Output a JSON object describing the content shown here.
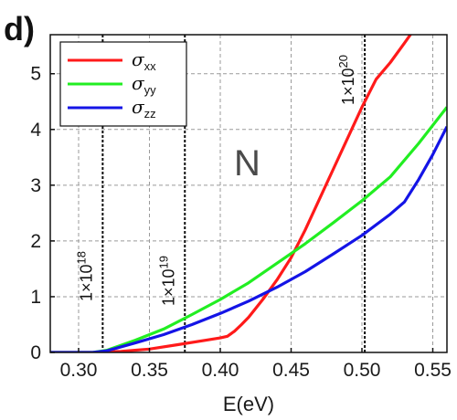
{
  "panel_label": "d)",
  "region_label": "N",
  "chart_data": {
    "type": "line",
    "title": "",
    "xlabel": "E(eV)",
    "ylabel": "",
    "xlim": [
      0.28,
      0.56
    ],
    "ylim": [
      0,
      5.7
    ],
    "grid": true,
    "legend_position": "top-left",
    "xticks": [
      0.3,
      0.35,
      0.4,
      0.45,
      0.5,
      0.55
    ],
    "xtick_labels": [
      "0.30",
      "0.35",
      "0.40",
      "0.45",
      "0.50",
      "0.55"
    ],
    "yticks": [
      0,
      1,
      2,
      3,
      4,
      5
    ],
    "ytick_labels": [
      "0",
      "1",
      "2",
      "3",
      "4",
      "5"
    ],
    "series": [
      {
        "name": "σ",
        "subscript": "xx",
        "color": "#ff1a1a",
        "x": [
          0.28,
          0.31,
          0.33,
          0.35,
          0.37,
          0.39,
          0.4,
          0.405,
          0.41,
          0.415,
          0.42,
          0.43,
          0.44,
          0.45,
          0.46,
          0.47,
          0.48,
          0.49,
          0.5,
          0.51,
          0.52,
          0.53,
          0.537
        ],
        "y": [
          0.0,
          0.0,
          0.02,
          0.06,
          0.14,
          0.22,
          0.26,
          0.29,
          0.38,
          0.5,
          0.63,
          0.95,
          1.3,
          1.7,
          2.2,
          2.75,
          3.3,
          3.85,
          4.4,
          4.9,
          5.2,
          5.55,
          5.8
        ]
      },
      {
        "name": "σ",
        "subscript": "yy",
        "color": "#22ee22",
        "x": [
          0.28,
          0.31,
          0.32,
          0.34,
          0.36,
          0.38,
          0.4,
          0.42,
          0.44,
          0.46,
          0.48,
          0.5,
          0.52,
          0.54,
          0.56
        ],
        "y": [
          0.0,
          0.0,
          0.04,
          0.22,
          0.42,
          0.68,
          0.95,
          1.25,
          1.6,
          1.95,
          2.33,
          2.72,
          3.15,
          3.75,
          4.4
        ]
      },
      {
        "name": "σ",
        "subscript": "zz",
        "color": "#1414e6",
        "x": [
          0.28,
          0.31,
          0.32,
          0.34,
          0.36,
          0.38,
          0.4,
          0.42,
          0.44,
          0.46,
          0.48,
          0.5,
          0.52,
          0.53,
          0.54,
          0.55,
          0.56
        ],
        "y": [
          0.0,
          0.0,
          0.03,
          0.17,
          0.32,
          0.5,
          0.7,
          0.92,
          1.17,
          1.45,
          1.77,
          2.1,
          2.48,
          2.7,
          3.1,
          3.55,
          4.05
        ]
      }
    ],
    "vertical_lines": [
      {
        "x": 0.317,
        "label_base": "1×10",
        "label_exp": "18"
      },
      {
        "x": 0.375,
        "label_base": "1×10",
        "label_exp": "19"
      },
      {
        "x": 0.502,
        "label_base": "1×10",
        "label_exp": "20"
      }
    ]
  }
}
